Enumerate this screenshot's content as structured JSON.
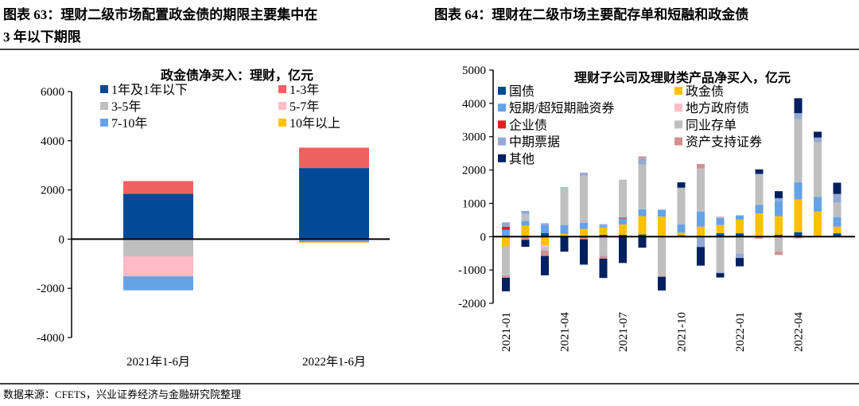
{
  "header": {
    "left_title_line1": "图表 63：理财二级市场配置政金债的期限主要集中在",
    "left_title_line2": "3 年以下期限",
    "right_title": "图表 64：理财在二级市场主要配存单和短融和政金债"
  },
  "footer": {
    "source": "数据来源：CFETS，兴业证券经济与金融研究院整理"
  },
  "chart_data": [
    {
      "type": "bar",
      "stacked": true,
      "title": "政金债净买入：理财，亿元",
      "categories": [
        "2021年1-6月",
        "2022年1-6月"
      ],
      "ylim": [
        -4000,
        6000
      ],
      "yticks": [
        6000,
        4000,
        2000,
        0,
        -2000,
        -4000
      ],
      "legend": "top",
      "grid": false,
      "series": [
        {
          "name": "1年及1年以下",
          "color": "#004a96",
          "values": [
            1840,
            2890
          ]
        },
        {
          "name": "1-3年",
          "color": "#ef6262",
          "values": [
            520,
            830
          ]
        },
        {
          "name": "3-5年",
          "color": "#bfbfbf",
          "values": [
            -700,
            0
          ]
        },
        {
          "name": "5-7年",
          "color": "#ffbbc7",
          "values": [
            -810,
            0
          ]
        },
        {
          "name": "7-10年",
          "color": "#66a3e6",
          "values": [
            -570,
            -120
          ]
        },
        {
          "name": "10年以上",
          "color": "#ffc000",
          "values": [
            0,
            -10
          ]
        }
      ]
    },
    {
      "type": "bar",
      "stacked": true,
      "title": "理财子公司及理财类产品净买入，亿元",
      "categories": [
        "2021-01",
        "2021-02",
        "2021-03",
        "2021-04",
        "2021-05",
        "2021-06",
        "2021-07",
        "2021-08",
        "2021-09",
        "2021-10",
        "2021-11",
        "2021-12",
        "2022-01",
        "2022-02",
        "2022-03",
        "2022-04",
        "2022-05",
        "2022-06"
      ],
      "xticks": [
        "2021-01",
        "2021-04",
        "2021-07",
        "2021-10",
        "2022-01",
        "2022-04"
      ],
      "ylim": [
        -2000,
        5000
      ],
      "yticks": [
        5000,
        4000,
        3000,
        2000,
        1000,
        0,
        -1000,
        -2000
      ],
      "legend": "top",
      "grid": false,
      "series": [
        {
          "name": "国债",
          "color": "#004a96",
          "values": [
            0,
            0,
            110,
            0,
            0,
            55,
            55,
            65,
            0,
            40,
            0,
            100,
            100,
            0,
            55,
            135,
            0,
            100
          ]
        },
        {
          "name": "政金债",
          "color": "#ffc000",
          "values": [
            -290,
            330,
            -260,
            80,
            230,
            220,
            310,
            550,
            600,
            80,
            300,
            250,
            410,
            700,
            560,
            980,
            750,
            200
          ]
        },
        {
          "name": "短期/超短期融资券",
          "color": "#66a3e6",
          "values": [
            200,
            140,
            230,
            270,
            190,
            50,
            180,
            210,
            210,
            250,
            450,
            220,
            130,
            250,
            460,
            520,
            440,
            290
          ]
        },
        {
          "name": "地方政府债",
          "color": "#ffbbc7",
          "values": [
            0,
            0,
            -50,
            0,
            0,
            0,
            0,
            0,
            0,
            0,
            0,
            40,
            0,
            0,
            0,
            0,
            0,
            0
          ]
        },
        {
          "name": "企业债",
          "color": "#e02020",
          "values": [
            100,
            0,
            0,
            0,
            0,
            0,
            25,
            0,
            0,
            0,
            0,
            0,
            0,
            0,
            0,
            0,
            0,
            0
          ]
        },
        {
          "name": "同业存单",
          "color": "#bfbfbf",
          "values": [
            -875,
            210,
            -110,
            1120,
            1410,
            -580,
            1140,
            1340,
            -1180,
            1100,
            1300,
            -1070,
            -510,
            920,
            -450,
            1890,
            1650,
            430
          ]
        },
        {
          "name": "中期票据",
          "color": "#93a9d4",
          "values": [
            130,
            95,
            65,
            0,
            90,
            50,
            0,
            190,
            0,
            0,
            -310,
            -25,
            -130,
            15,
            80,
            180,
            135,
            260
          ]
        },
        {
          "name": "资产支持证券",
          "color": "#d49090",
          "values": [
            -70,
            -95,
            -160,
            15,
            -80,
            -80,
            0,
            55,
            -25,
            0,
            130,
            0,
            0,
            -60,
            -100,
            -50,
            -20,
            0
          ]
        },
        {
          "name": "其他",
          "color": "#002060",
          "values": [
            -405,
            -210,
            -580,
            -450,
            -760,
            -580,
            -790,
            -330,
            -410,
            160,
            -560,
            -130,
            -250,
            135,
            210,
            450,
            175,
            340
          ]
        }
      ]
    }
  ]
}
